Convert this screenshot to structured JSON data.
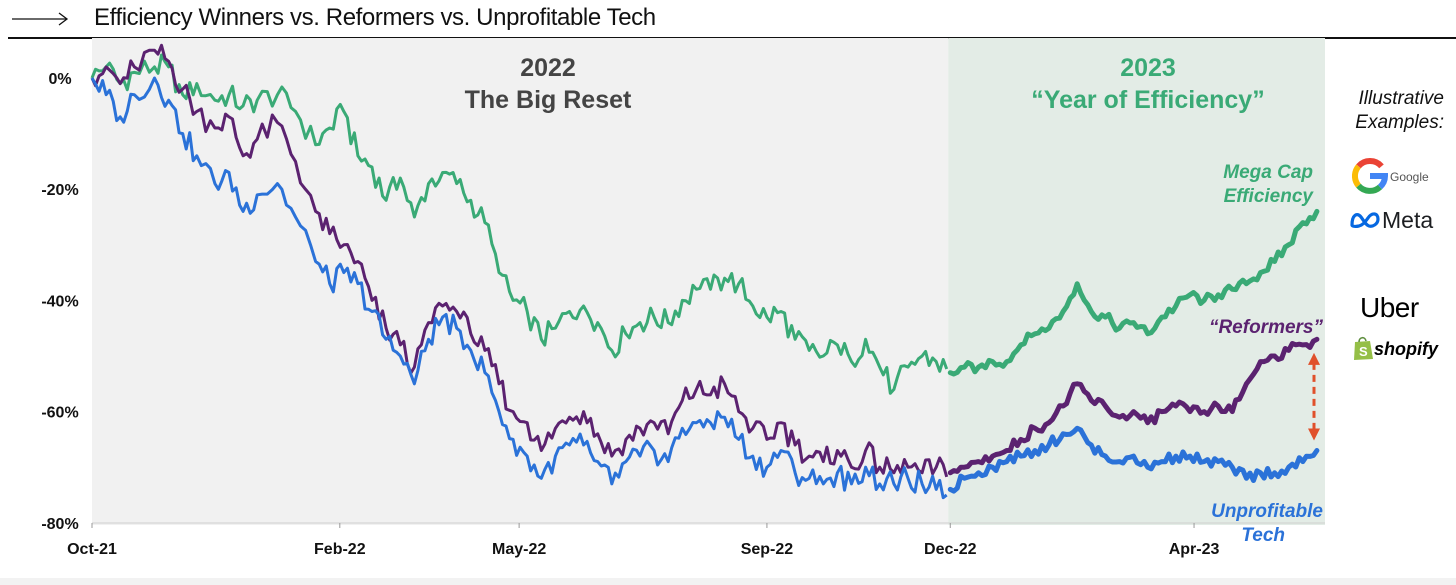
{
  "header": {
    "title": "Efficiency Winners vs. Reformers vs. Unprofitable Tech"
  },
  "side": {
    "illustrative_line1": "Illustrative",
    "illustrative_line2": "Examples:",
    "logos": [
      {
        "name": "Google",
        "text": "Google"
      },
      {
        "name": "Meta",
        "text": "Meta"
      },
      {
        "name": "Uber",
        "text": "Uber"
      },
      {
        "name": "Shopify",
        "text": "shopify"
      }
    ]
  },
  "chart_data": {
    "type": "line",
    "x_ticks": [
      "Oct-21",
      "Feb-22",
      "May-22",
      "Sep-22",
      "Dec-22",
      "Apr-23"
    ],
    "y_ticks": [
      "0%",
      "-20%",
      "-40%",
      "-60%",
      "-80%"
    ],
    "ylim": [
      -80,
      5
    ],
    "xlim": [
      "2021-10-01",
      "2023-06-05"
    ],
    "grid": false,
    "regions": [
      {
        "label_year": "2022",
        "label_text": "The Big Reset",
        "start": "2021-10-01",
        "end": "2022-11-30",
        "color": "#f1f1f1",
        "text_color": "#444444"
      },
      {
        "label_year": "2023",
        "label_text": "“Year of Efficiency”",
        "start": "2022-11-30",
        "end": "2023-06-05",
        "color": "#e3ece6",
        "text_color": "#3aaa76"
      }
    ],
    "series": [
      {
        "name": "Mega Cap Efficiency",
        "label_line1": "Mega Cap",
        "label_line2": "Efficiency",
        "color": "#3aaa76",
        "points": [
          [
            "2021-10-01",
            0
          ],
          [
            "2021-10-08",
            2
          ],
          [
            "2021-10-15",
            -1
          ],
          [
            "2021-10-22",
            1
          ],
          [
            "2021-11-01",
            2
          ],
          [
            "2021-11-08",
            2
          ],
          [
            "2021-11-15",
            -3
          ],
          [
            "2021-11-22",
            -1
          ],
          [
            "2021-12-01",
            -4
          ],
          [
            "2021-12-08",
            -3
          ],
          [
            "2021-12-15",
            -5
          ],
          [
            "2021-12-22",
            -4
          ],
          [
            "2022-01-01",
            -3
          ],
          [
            "2022-01-10",
            -6
          ],
          [
            "2022-01-20",
            -12
          ],
          [
            "2022-01-27",
            -9
          ],
          [
            "2022-02-03",
            -6
          ],
          [
            "2022-02-10",
            -14
          ],
          [
            "2022-02-17",
            -16
          ],
          [
            "2022-02-24",
            -22
          ],
          [
            "2022-03-03",
            -18
          ],
          [
            "2022-03-10",
            -25
          ],
          [
            "2022-03-17",
            -19
          ],
          [
            "2022-03-24",
            -17
          ],
          [
            "2022-03-31",
            -19
          ],
          [
            "2022-04-07",
            -22
          ],
          [
            "2022-04-14",
            -26
          ],
          [
            "2022-04-21",
            -35
          ],
          [
            "2022-04-28",
            -40
          ],
          [
            "2022-05-05",
            -42
          ],
          [
            "2022-05-12",
            -47
          ],
          [
            "2022-05-19",
            -45
          ],
          [
            "2022-05-26",
            -42
          ],
          [
            "2022-06-02",
            -41
          ],
          [
            "2022-06-09",
            -44
          ],
          [
            "2022-06-16",
            -49
          ],
          [
            "2022-06-23",
            -46
          ],
          [
            "2022-06-30",
            -44
          ],
          [
            "2022-07-07",
            -43
          ],
          [
            "2022-07-14",
            -44
          ],
          [
            "2022-07-21",
            -40
          ],
          [
            "2022-07-28",
            -38
          ],
          [
            "2022-08-04",
            -38
          ],
          [
            "2022-08-11",
            -36
          ],
          [
            "2022-08-18",
            -37
          ],
          [
            "2022-08-25",
            -41
          ],
          [
            "2022-09-01",
            -43
          ],
          [
            "2022-09-08",
            -42
          ],
          [
            "2022-09-15",
            -47
          ],
          [
            "2022-09-22",
            -49
          ],
          [
            "2022-09-29",
            -50
          ],
          [
            "2022-10-06",
            -48
          ],
          [
            "2022-10-13",
            -51
          ],
          [
            "2022-10-20",
            -47
          ],
          [
            "2022-10-27",
            -52
          ],
          [
            "2022-11-03",
            -56
          ],
          [
            "2022-11-10",
            -52
          ],
          [
            "2022-11-17",
            -50
          ],
          [
            "2022-11-24",
            -51
          ],
          [
            "2022-12-01",
            -53
          ],
          [
            "2022-12-08",
            -52
          ],
          [
            "2022-12-15",
            -52
          ],
          [
            "2022-12-22",
            -51
          ],
          [
            "2022-12-29",
            -51
          ],
          [
            "2023-01-05",
            -48
          ],
          [
            "2023-01-12",
            -46
          ],
          [
            "2023-01-19",
            -45
          ],
          [
            "2023-01-26",
            -42
          ],
          [
            "2023-02-02",
            -37
          ],
          [
            "2023-02-09",
            -42
          ],
          [
            "2023-02-16",
            -43
          ],
          [
            "2023-02-23",
            -45
          ],
          [
            "2023-03-02",
            -44
          ],
          [
            "2023-03-09",
            -46
          ],
          [
            "2023-03-16",
            -43
          ],
          [
            "2023-03-23",
            -41
          ],
          [
            "2023-03-30",
            -39
          ],
          [
            "2023-04-06",
            -40
          ],
          [
            "2023-04-13",
            -39
          ],
          [
            "2023-04-20",
            -38
          ],
          [
            "2023-04-27",
            -37
          ],
          [
            "2023-05-04",
            -35
          ],
          [
            "2023-05-11",
            -33
          ],
          [
            "2023-05-18",
            -30
          ],
          [
            "2023-05-25",
            -26
          ],
          [
            "2023-06-01",
            -24
          ]
        ]
      },
      {
        "name": "“Reformers”",
        "label_line1": "“Reformers”",
        "label_line2": "",
        "color": "#5b2270",
        "points": [
          [
            "2021-10-01",
            0
          ],
          [
            "2021-10-08",
            2
          ],
          [
            "2021-10-15",
            -1
          ],
          [
            "2021-10-22",
            2
          ],
          [
            "2021-11-01",
            5
          ],
          [
            "2021-11-08",
            3
          ],
          [
            "2021-11-15",
            -2
          ],
          [
            "2021-11-22",
            -6
          ],
          [
            "2021-12-01",
            -9
          ],
          [
            "2021-12-08",
            -7
          ],
          [
            "2021-12-15",
            -14
          ],
          [
            "2021-12-22",
            -11
          ],
          [
            "2022-01-01",
            -8
          ],
          [
            "2022-01-10",
            -15
          ],
          [
            "2022-01-20",
            -24
          ],
          [
            "2022-01-27",
            -28
          ],
          [
            "2022-02-03",
            -30
          ],
          [
            "2022-02-10",
            -33
          ],
          [
            "2022-02-17",
            -40
          ],
          [
            "2022-02-24",
            -45
          ],
          [
            "2022-03-03",
            -48
          ],
          [
            "2022-03-10",
            -52
          ],
          [
            "2022-03-17",
            -44
          ],
          [
            "2022-03-24",
            -41
          ],
          [
            "2022-03-31",
            -42
          ],
          [
            "2022-04-07",
            -46
          ],
          [
            "2022-04-14",
            -49
          ],
          [
            "2022-04-21",
            -55
          ],
          [
            "2022-04-28",
            -60
          ],
          [
            "2022-05-05",
            -62
          ],
          [
            "2022-05-12",
            -67
          ],
          [
            "2022-05-19",
            -63
          ],
          [
            "2022-05-26",
            -61
          ],
          [
            "2022-06-02",
            -60
          ],
          [
            "2022-06-09",
            -64
          ],
          [
            "2022-06-16",
            -68
          ],
          [
            "2022-06-23",
            -65
          ],
          [
            "2022-06-30",
            -63
          ],
          [
            "2022-07-07",
            -62
          ],
          [
            "2022-07-14",
            -64
          ],
          [
            "2022-07-21",
            -58
          ],
          [
            "2022-07-28",
            -56
          ],
          [
            "2022-08-04",
            -57
          ],
          [
            "2022-08-11",
            -55
          ],
          [
            "2022-08-18",
            -60
          ],
          [
            "2022-08-25",
            -63
          ],
          [
            "2022-09-01",
            -65
          ],
          [
            "2022-09-08",
            -62
          ],
          [
            "2022-09-15",
            -66
          ],
          [
            "2022-09-22",
            -68
          ],
          [
            "2022-09-29",
            -69
          ],
          [
            "2022-10-06",
            -67
          ],
          [
            "2022-10-13",
            -70
          ],
          [
            "2022-10-20",
            -67
          ],
          [
            "2022-10-27",
            -70
          ],
          [
            "2022-11-03",
            -71
          ],
          [
            "2022-11-10",
            -70
          ],
          [
            "2022-11-17",
            -71
          ],
          [
            "2022-11-24",
            -70
          ],
          [
            "2022-12-01",
            -71
          ],
          [
            "2022-12-08",
            -70
          ],
          [
            "2022-12-15",
            -69
          ],
          [
            "2022-12-22",
            -68
          ],
          [
            "2022-12-29",
            -67
          ],
          [
            "2023-01-05",
            -65
          ],
          [
            "2023-01-12",
            -63
          ],
          [
            "2023-01-19",
            -62
          ],
          [
            "2023-01-26",
            -59
          ],
          [
            "2023-02-02",
            -55
          ],
          [
            "2023-02-09",
            -58
          ],
          [
            "2023-02-16",
            -59
          ],
          [
            "2023-02-23",
            -61
          ],
          [
            "2023-03-02",
            -60
          ],
          [
            "2023-03-09",
            -62
          ],
          [
            "2023-03-16",
            -60
          ],
          [
            "2023-03-23",
            -59
          ],
          [
            "2023-03-30",
            -60
          ],
          [
            "2023-04-06",
            -60
          ],
          [
            "2023-04-13",
            -59
          ],
          [
            "2023-04-20",
            -60
          ],
          [
            "2023-04-27",
            -55
          ],
          [
            "2023-05-04",
            -51
          ],
          [
            "2023-05-11",
            -50
          ],
          [
            "2023-05-18",
            -49
          ],
          [
            "2023-05-25",
            -48
          ],
          [
            "2023-06-01",
            -47
          ]
        ]
      },
      {
        "name": "Unprofitable Tech",
        "label_line1": "Unprofitable",
        "label_line2": "Tech",
        "color": "#2b72d8",
        "points": [
          [
            "2021-10-01",
            0
          ],
          [
            "2021-10-08",
            -3
          ],
          [
            "2021-10-15",
            -7
          ],
          [
            "2021-10-22",
            -3
          ],
          [
            "2021-11-01",
            0
          ],
          [
            "2021-11-08",
            -4
          ],
          [
            "2021-11-15",
            -10
          ],
          [
            "2021-11-22",
            -14
          ],
          [
            "2021-12-01",
            -19
          ],
          [
            "2021-12-08",
            -17
          ],
          [
            "2021-12-15",
            -24
          ],
          [
            "2021-12-22",
            -21
          ],
          [
            "2022-01-01",
            -19
          ],
          [
            "2022-01-10",
            -25
          ],
          [
            "2022-01-20",
            -33
          ],
          [
            "2022-01-27",
            -37
          ],
          [
            "2022-02-03",
            -35
          ],
          [
            "2022-02-10",
            -37
          ],
          [
            "2022-02-17",
            -42
          ],
          [
            "2022-02-24",
            -47
          ],
          [
            "2022-03-03",
            -50
          ],
          [
            "2022-03-10",
            -55
          ],
          [
            "2022-03-17",
            -47
          ],
          [
            "2022-03-24",
            -43
          ],
          [
            "2022-03-31",
            -45
          ],
          [
            "2022-04-07",
            -49
          ],
          [
            "2022-04-14",
            -53
          ],
          [
            "2022-04-21",
            -60
          ],
          [
            "2022-04-28",
            -65
          ],
          [
            "2022-05-05",
            -68
          ],
          [
            "2022-05-12",
            -72
          ],
          [
            "2022-05-19",
            -68
          ],
          [
            "2022-05-26",
            -66
          ],
          [
            "2022-06-02",
            -66
          ],
          [
            "2022-06-09",
            -69
          ],
          [
            "2022-06-16",
            -73
          ],
          [
            "2022-06-23",
            -69
          ],
          [
            "2022-06-30",
            -68
          ],
          [
            "2022-07-07",
            -67
          ],
          [
            "2022-07-14",
            -69
          ],
          [
            "2022-07-21",
            -63
          ],
          [
            "2022-07-28",
            -62
          ],
          [
            "2022-08-04",
            -62
          ],
          [
            "2022-08-11",
            -61
          ],
          [
            "2022-08-18",
            -65
          ],
          [
            "2022-08-25",
            -68
          ],
          [
            "2022-09-01",
            -70
          ],
          [
            "2022-09-08",
            -67
          ],
          [
            "2022-09-15",
            -71
          ],
          [
            "2022-09-22",
            -72
          ],
          [
            "2022-09-29",
            -73
          ],
          [
            "2022-10-06",
            -71
          ],
          [
            "2022-10-13",
            -73
          ],
          [
            "2022-10-20",
            -70
          ],
          [
            "2022-10-27",
            -73
          ],
          [
            "2022-11-03",
            -73
          ],
          [
            "2022-11-10",
            -72
          ],
          [
            "2022-11-17",
            -73
          ],
          [
            "2022-11-24",
            -74
          ],
          [
            "2022-12-01",
            -74
          ],
          [
            "2022-12-08",
            -72
          ],
          [
            "2022-12-15",
            -71
          ],
          [
            "2022-12-22",
            -70
          ],
          [
            "2022-12-29",
            -69
          ],
          [
            "2023-01-05",
            -68
          ],
          [
            "2023-01-12",
            -67
          ],
          [
            "2023-01-19",
            -66
          ],
          [
            "2023-01-26",
            -64
          ],
          [
            "2023-02-02",
            -63
          ],
          [
            "2023-02-09",
            -66
          ],
          [
            "2023-02-16",
            -68
          ],
          [
            "2023-02-23",
            -69
          ],
          [
            "2023-03-02",
            -68
          ],
          [
            "2023-03-09",
            -70
          ],
          [
            "2023-03-16",
            -69
          ],
          [
            "2023-03-23",
            -68
          ],
          [
            "2023-03-30",
            -68
          ],
          [
            "2023-04-06",
            -69
          ],
          [
            "2023-04-13",
            -69
          ],
          [
            "2023-04-20",
            -70
          ],
          [
            "2023-04-27",
            -72
          ],
          [
            "2023-05-04",
            -71
          ],
          [
            "2023-05-11",
            -71
          ],
          [
            "2023-05-18",
            -70
          ],
          [
            "2023-05-25",
            -69
          ],
          [
            "2023-06-01",
            -67
          ]
        ]
      }
    ],
    "annotation": {
      "type": "double-arrow",
      "color": "#e0502b",
      "between": [
        "“Reformers”",
        "Unprofitable Tech"
      ]
    }
  }
}
